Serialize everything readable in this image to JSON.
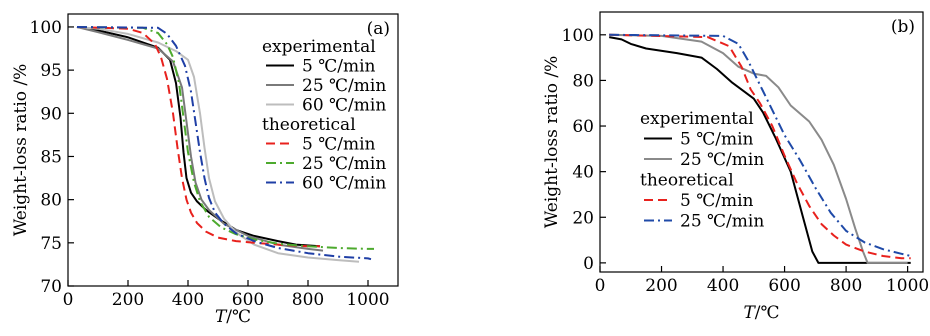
{
  "chart_data": [
    {
      "type": "line",
      "panel_label": "(a)",
      "xlabel_italic": "T",
      "xlabel_rest": "/℃",
      "ylabel": "Weight-loss ratio /%",
      "xlim": [
        0,
        1100
      ],
      "ylim": [
        70,
        101.5
      ],
      "xticks": [
        0,
        200,
        400,
        600,
        800,
        1000
      ],
      "yticks": [
        70,
        75,
        80,
        85,
        90,
        95,
        100
      ],
      "grid": false,
      "legend_position": "top-right",
      "legend_groups": [
        {
          "title": "experimental",
          "series": [
            0,
            1,
            2
          ]
        },
        {
          "title": "theoretical",
          "series": [
            3,
            4,
            5
          ]
        }
      ],
      "series": [
        {
          "name": "5 ℃/min",
          "color": "#000000",
          "style": "solid",
          "x": [
            30,
            100,
            200,
            300,
            340,
            360,
            375,
            385,
            395,
            410,
            430,
            460,
            500,
            560,
            620,
            700,
            760,
            840
          ],
          "y": [
            100,
            99.6,
            98.8,
            97.6,
            96.2,
            93.5,
            89.5,
            85.5,
            82.5,
            80.8,
            79.8,
            78.8,
            77.8,
            76.5,
            75.8,
            75.2,
            74.8,
            74.6
          ]
        },
        {
          "name": "25 ℃/min",
          "color": "#7a7a7a",
          "style": "solid",
          "x": [
            30,
            100,
            200,
            300,
            350,
            380,
            395,
            410,
            425,
            445,
            470,
            520,
            600,
            700,
            800,
            850
          ],
          "y": [
            100,
            99.4,
            98.5,
            97.5,
            96.0,
            93.0,
            89.0,
            85.0,
            82.0,
            80.0,
            78.8,
            77.2,
            75.8,
            74.8,
            74.3,
            74.1
          ]
        },
        {
          "name": "60 ℃/min",
          "color": "#bdbdbd",
          "style": "solid",
          "x": [
            30,
            100,
            200,
            300,
            360,
            400,
            420,
            440,
            455,
            470,
            490,
            520,
            560,
            620,
            700,
            800,
            900,
            970
          ],
          "y": [
            100,
            99.8,
            99.2,
            98.2,
            97.2,
            96.2,
            94.2,
            90.0,
            86.0,
            82.5,
            79.8,
            77.8,
            76.2,
            74.8,
            73.8,
            73.3,
            73.0,
            72.8
          ]
        },
        {
          "name": "5 ℃/min",
          "color": "#e8211d",
          "style": "dash",
          "x": [
            30,
            200,
            250,
            290,
            310,
            330,
            350,
            365,
            380,
            395,
            410,
            430,
            460,
            500,
            560,
            620,
            700,
            800,
            840
          ],
          "y": [
            100,
            99.8,
            99.3,
            98.0,
            96.5,
            94.0,
            90.0,
            86.0,
            82.5,
            80.0,
            78.5,
            77.3,
            76.3,
            75.6,
            75.2,
            75.0,
            74.8,
            74.6,
            74.6
          ]
        },
        {
          "name": "25 ℃/min",
          "color": "#4daa2e",
          "style": "dashdot",
          "x": [
            30,
            250,
            300,
            330,
            350,
            370,
            385,
            400,
            420,
            440,
            470,
            510,
            560,
            620,
            700,
            800,
            900,
            1000,
            1020
          ],
          "y": [
            100,
            99.9,
            99.3,
            98.0,
            96.5,
            93.5,
            89.5,
            85.5,
            82.0,
            79.8,
            78.0,
            76.8,
            76.0,
            75.4,
            74.9,
            74.6,
            74.4,
            74.3,
            74.3
          ]
        },
        {
          "name": "60 ℃/min",
          "color": "#1f3fa6",
          "style": "dashdot",
          "x": [
            30,
            300,
            330,
            360,
            390,
            410,
            425,
            440,
            455,
            470,
            490,
            520,
            560,
            620,
            700,
            800,
            900,
            1000,
            1010
          ],
          "y": [
            100,
            99.9,
            99.2,
            97.8,
            95.5,
            92.5,
            89.0,
            85.5,
            82.5,
            80.2,
            78.5,
            77.2,
            76.1,
            75.2,
            74.4,
            73.8,
            73.4,
            73.2,
            73.1
          ]
        }
      ]
    },
    {
      "type": "line",
      "panel_label": "(b)",
      "xlabel_italic": "T",
      "xlabel_rest": "/℃",
      "ylabel": "Weight-loss ratio /%",
      "xlim": [
        0,
        1050
      ],
      "ylim": [
        -4,
        110
      ],
      "xticks": [
        0,
        200,
        400,
        600,
        800,
        1000
      ],
      "yticks": [
        0,
        20,
        40,
        60,
        80,
        100
      ],
      "grid": false,
      "legend_position": "center-left",
      "legend_groups": [
        {
          "title": "experimental",
          "series": [
            0,
            1
          ]
        },
        {
          "title": "theoretical",
          "series": [
            2,
            3
          ]
        }
      ],
      "series": [
        {
          "name": "5 ℃/min",
          "color": "#000000",
          "style": "solid",
          "x": [
            30,
            70,
            100,
            150,
            250,
            330,
            380,
            430,
            470,
            500,
            530,
            570,
            620,
            660,
            690,
            710,
            1010
          ],
          "y": [
            99,
            98,
            96,
            94,
            92,
            90,
            85,
            79,
            75,
            72,
            66,
            55,
            40,
            20,
            5,
            0,
            0
          ]
        },
        {
          "name": "25 ℃/min",
          "color": "#8a8a8a",
          "style": "solid",
          "x": [
            30,
            200,
            330,
            400,
            450,
            500,
            540,
            580,
            620,
            680,
            720,
            760,
            800,
            830,
            855,
            870,
            1000
          ],
          "y": [
            100,
            99.5,
            97,
            92,
            86,
            83,
            82,
            77,
            69,
            62,
            54,
            43,
            28,
            15,
            5,
            0,
            0
          ]
        },
        {
          "name": "5 ℃/min",
          "color": "#e8211d",
          "style": "dash",
          "x": [
            30,
            350,
            420,
            460,
            490,
            520,
            560,
            600,
            640,
            680,
            720,
            760,
            800,
            860,
            920,
            980,
            1010
          ],
          "y": [
            100,
            99,
            95,
            86,
            76,
            70,
            60,
            47,
            35,
            25,
            17,
            12,
            8,
            5,
            3,
            2,
            2
          ]
        },
        {
          "name": "25 ℃/min",
          "color": "#1f4aa8",
          "style": "dashdot",
          "x": [
            30,
            400,
            450,
            480,
            520,
            560,
            600,
            650,
            700,
            750,
            800,
            860,
            920,
            980,
            1010
          ],
          "y": [
            100,
            99.5,
            96,
            89,
            78,
            67,
            56,
            45,
            33,
            22,
            14,
            9,
            6,
            4,
            3
          ]
        }
      ]
    }
  ]
}
